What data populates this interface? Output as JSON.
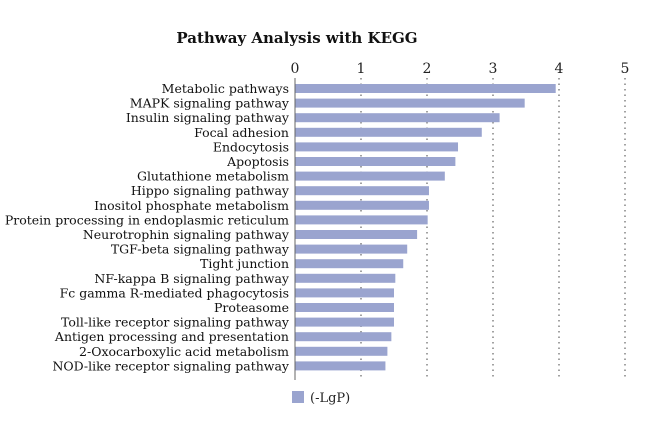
{
  "chart_data": {
    "type": "bar",
    "orientation": "horizontal",
    "title": "Pathway Analysis with KEGG",
    "xlim": [
      0,
      5
    ],
    "xticks": [
      "0",
      "1",
      "2",
      "3",
      "4",
      "5"
    ],
    "grid": "dotted vertical",
    "legend_placement": "bottom-left",
    "bar_color": "#9aa4cf",
    "categories": [
      "Metabolic pathways",
      "MAPK signaling pathway",
      "Insulin signaling pathway",
      "Focal adhesion",
      "Endocytosis",
      "Apoptosis",
      "Glutathione metabolism",
      "Hippo signaling pathway",
      "Inositol phosphate metabolism",
      "Protein processing in endoplasmic reticulum",
      "Neurotrophin signaling pathway",
      "TGF-beta signaling pathway",
      "Tight junction",
      "NF-kappa B signaling pathway",
      "Fc gamma R-mediated phagocytosis",
      "Proteasome",
      "Toll-like receptor signaling pathway",
      "Antigen processing and presentation",
      "2-Oxocarboxylic acid metabolism",
      "NOD-like receptor signaling pathway"
    ],
    "series": [
      {
        "name": "(-LgP)",
        "values": [
          3.95,
          3.48,
          3.1,
          2.83,
          2.47,
          2.43,
          2.27,
          2.03,
          2.03,
          2.01,
          1.85,
          1.7,
          1.64,
          1.52,
          1.5,
          1.5,
          1.5,
          1.46,
          1.4,
          1.37
        ]
      }
    ]
  }
}
